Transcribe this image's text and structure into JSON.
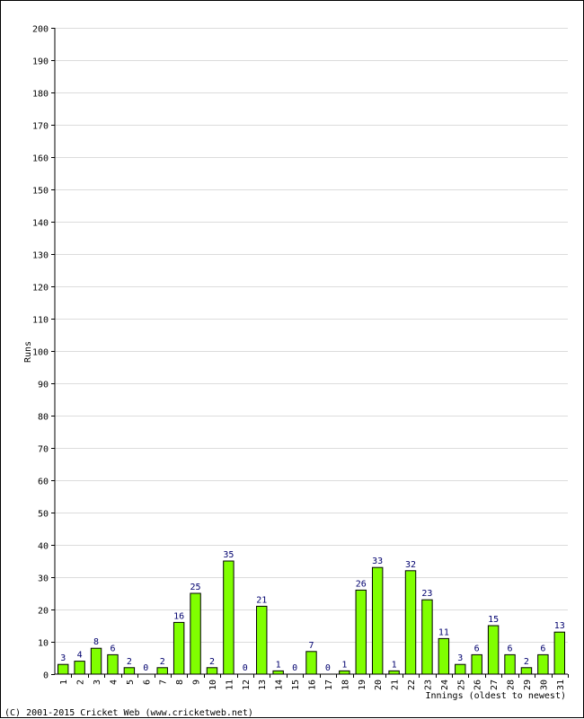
{
  "chart_data": {
    "type": "bar",
    "xlabel": "Innings (oldest to newest)",
    "ylabel": "Runs",
    "ylim": [
      0,
      200
    ],
    "yticks": [
      0,
      10,
      20,
      30,
      40,
      50,
      60,
      70,
      80,
      90,
      100,
      110,
      120,
      130,
      140,
      150,
      160,
      170,
      180,
      190,
      200
    ],
    "grid": true,
    "categories": [
      "1",
      "2",
      "3",
      "4",
      "5",
      "6",
      "7",
      "8",
      "9",
      "10",
      "11",
      "12",
      "13",
      "14",
      "15",
      "16",
      "17",
      "18",
      "19",
      "20",
      "21",
      "22",
      "23",
      "24",
      "25",
      "26",
      "27",
      "28",
      "29",
      "30",
      "31"
    ],
    "values": [
      3,
      4,
      8,
      6,
      2,
      0,
      2,
      16,
      25,
      2,
      35,
      0,
      21,
      1,
      0,
      7,
      0,
      1,
      26,
      33,
      1,
      32,
      23,
      11,
      3,
      6,
      15,
      6,
      2,
      6,
      13
    ],
    "bar_color": "#80ff00",
    "label_color": "#00006e"
  },
  "footer": {
    "copyright": "(C) 2001-2015 Cricket Web (www.cricketweb.net)"
  }
}
